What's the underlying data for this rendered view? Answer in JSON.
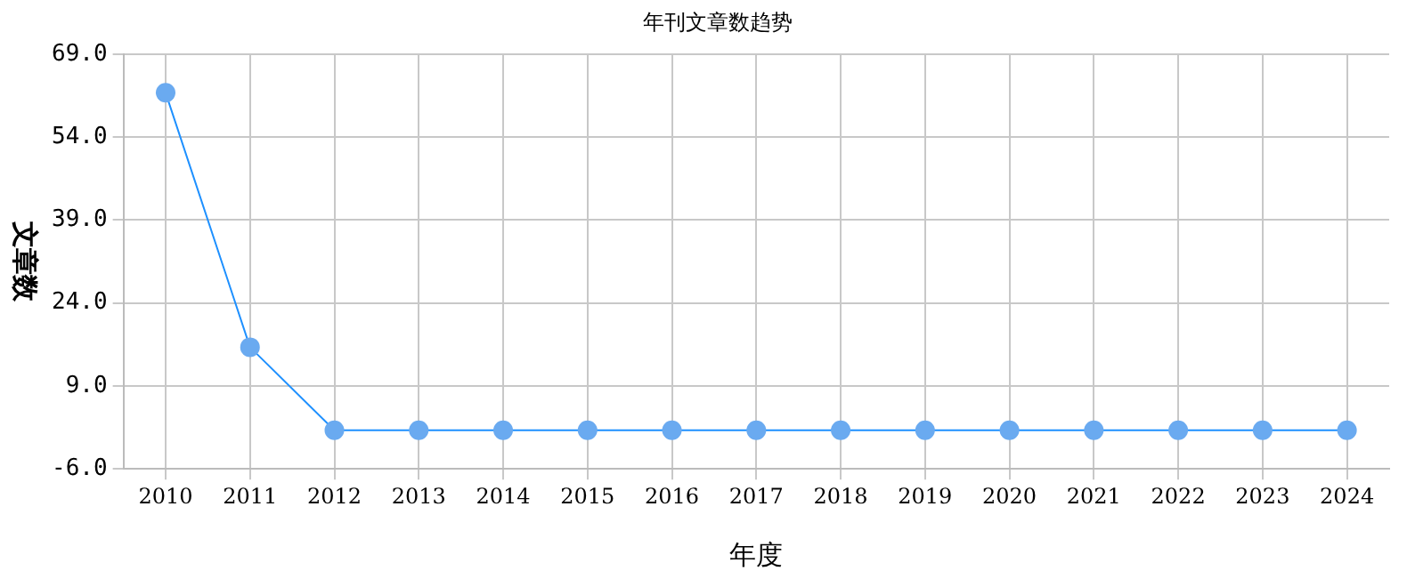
{
  "chart_data": {
    "type": "line",
    "title": "年刊文章数趋势",
    "xlabel": "年度",
    "ylabel": "文章数",
    "categories": [
      "2010",
      "2011",
      "2012",
      "2013",
      "2014",
      "2015",
      "2016",
      "2017",
      "2018",
      "2019",
      "2020",
      "2021",
      "2022",
      "2023",
      "2024"
    ],
    "series": [
      {
        "color": "#1e90ff",
        "values": [
          62,
          16,
          1,
          1,
          1,
          1,
          1,
          1,
          1,
          1,
          1,
          1,
          1,
          1,
          1
        ]
      }
    ],
    "ylim": [
      -6,
      69
    ],
    "yticks": [
      {
        "value": -6,
        "label": "-6.0"
      },
      {
        "value": 9,
        "label": "9.0"
      },
      {
        "value": 24,
        "label": "24.0"
      },
      {
        "value": 39,
        "label": "39.0"
      },
      {
        "value": 54,
        "label": "54.0"
      },
      {
        "value": 69,
        "label": "69.0"
      }
    ],
    "grid": true,
    "legend": false,
    "marker": "circle",
    "line_style": "solid"
  }
}
